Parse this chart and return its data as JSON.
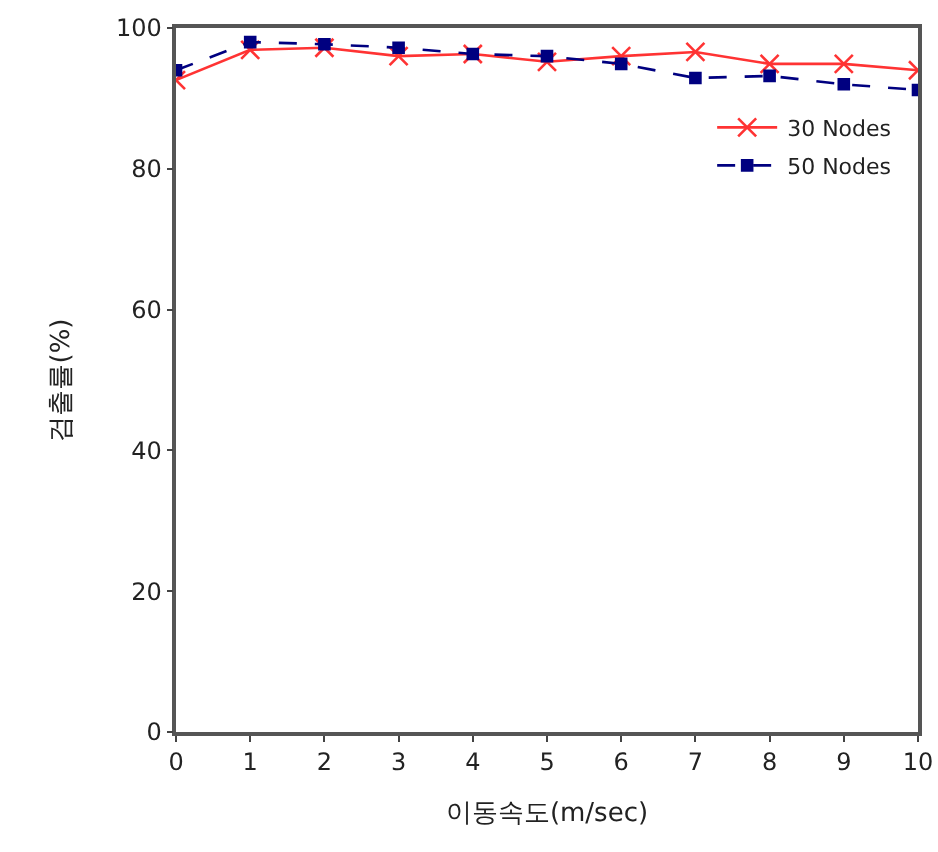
{
  "chart_data": {
    "type": "line",
    "xlabel": "이동속도(m/sec)",
    "ylabel": "검출률(%)",
    "x": [
      0,
      1,
      2,
      3,
      4,
      5,
      6,
      7,
      8,
      9,
      10
    ],
    "xlim": [
      0,
      10
    ],
    "xticks": [
      0,
      1,
      2,
      3,
      4,
      5,
      6,
      7,
      8,
      9,
      10
    ],
    "ylim": [
      0,
      100
    ],
    "yticks": [
      0,
      20,
      40,
      60,
      80,
      100
    ],
    "grid": false,
    "legend": "top right",
    "series": [
      {
        "name": "30 Nodes",
        "color": "#ff3333",
        "marker": "cross",
        "line_style": "solid",
        "values": [
          92.6,
          96.9,
          97.2,
          96,
          96.3,
          95.2,
          96,
          96.6,
          94.9,
          94.9,
          94
        ]
      },
      {
        "name": "50 Nodes",
        "color": "#000080",
        "marker": "square",
        "line_style": "dashed",
        "values": [
          94,
          98,
          97.7,
          97.2,
          96.3,
          96,
          94.9,
          92.9,
          93.2,
          92,
          91.2
        ]
      }
    ]
  }
}
